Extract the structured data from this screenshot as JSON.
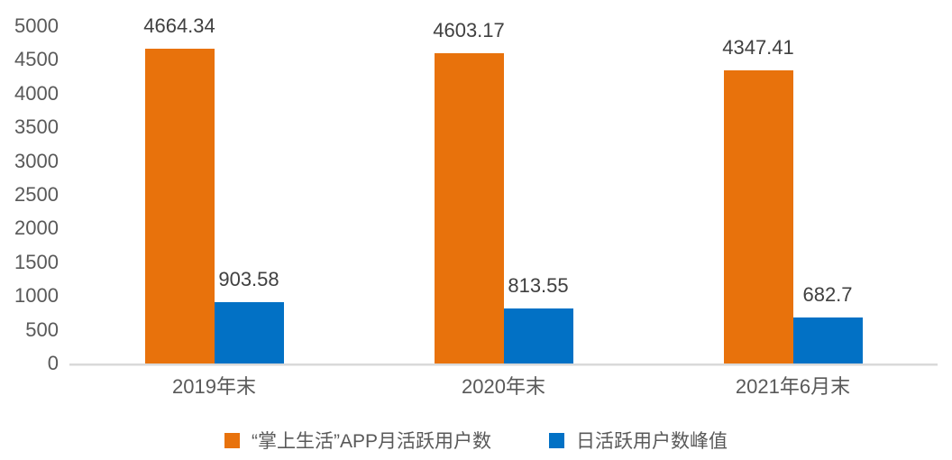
{
  "page": {
    "background": "#FFFFFF"
  },
  "chart_data": {
    "type": "bar",
    "title": "",
    "categories": [
      "2019年末",
      "2020年末",
      "2021年6月末"
    ],
    "series": [
      {
        "key": "mau",
        "name": "“掌上生活”APP月活跃用户数",
        "color": "#E8720C",
        "values": [
          4664.34,
          4603.17,
          4347.41
        ]
      },
      {
        "key": "dau-peak",
        "name": "日活跃用户数峰值",
        "color": "#0271C5",
        "values": [
          903.58,
          813.55,
          682.7
        ]
      }
    ],
    "data_labels": [
      "4664.34",
      "903.58",
      "4603.17",
      "813.55",
      "4347.41",
      "682.7"
    ],
    "ylim": [
      0,
      5000
    ],
    "yticks": [
      0,
      500,
      1000,
      1500,
      2000,
      2500,
      3000,
      3500,
      4000,
      4500,
      5000
    ],
    "grid": false,
    "legend_position": "bottom",
    "colors": {
      "axis_line": "#D9D9D9",
      "tick_label": "#595959",
      "value_label": "#404040",
      "category_label": "#595959",
      "legend_text": "#595959"
    }
  }
}
